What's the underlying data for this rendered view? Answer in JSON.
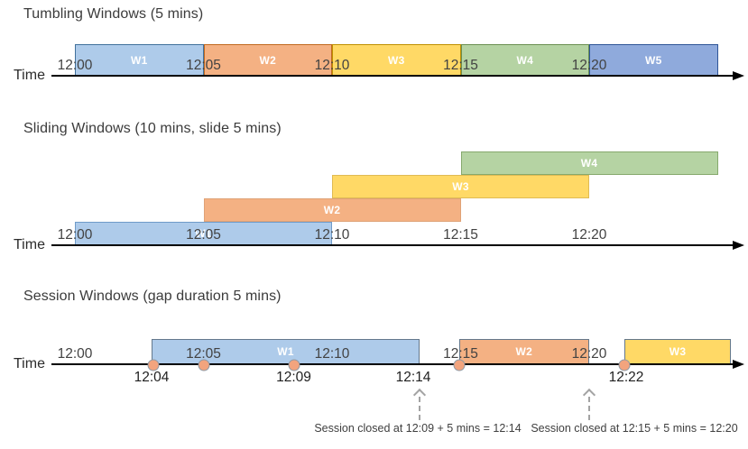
{
  "colors": {
    "blue": "#AECBEA",
    "orange": "#F4B183",
    "yellow": "#FFD966",
    "green": "#B5D3A3",
    "dark_blue": "#8FAADC",
    "event_dot": "#F2A47E",
    "axis": "#000000",
    "tick_text": "#424242"
  },
  "sections": [
    {
      "id": "tumbling",
      "title": "Tumbling Windows (5 mins)",
      "time_label": "Time",
      "ticks": [
        "12:00",
        "12:05",
        "12:10",
        "12:15",
        "12:20"
      ],
      "windows": [
        {
          "label": "W1",
          "color": "blue",
          "start": "12:00",
          "end": "12:05"
        },
        {
          "label": "W2",
          "color": "orange",
          "start": "12:05",
          "end": "12:10"
        },
        {
          "label": "W3",
          "color": "yellow",
          "start": "12:10",
          "end": "12:15"
        },
        {
          "label": "W4",
          "color": "green",
          "start": "12:15",
          "end": "12:20"
        },
        {
          "label": "W5",
          "color": "dark_blue",
          "start": "12:20",
          "end": "12:25"
        }
      ]
    },
    {
      "id": "sliding",
      "title": "Sliding Windows (10 mins, slide 5 mins)",
      "time_label": "Time",
      "ticks": [
        "12:00",
        "12:05",
        "12:10",
        "12:15",
        "12:20"
      ],
      "windows": [
        {
          "label": "W1",
          "color": "blue",
          "start": "12:00",
          "end": "12:10"
        },
        {
          "label": "W2",
          "color": "orange",
          "start": "12:05",
          "end": "12:15"
        },
        {
          "label": "W3",
          "color": "yellow",
          "start": "12:10",
          "end": "12:20"
        },
        {
          "label": "W4",
          "color": "green",
          "start": "12:15",
          "end": "12:25"
        }
      ]
    },
    {
      "id": "session",
      "title": "Session Windows (gap duration 5 mins)",
      "time_label": "Time",
      "ticks": [
        "12:00",
        "12:05",
        "12:10",
        "12:15",
        "12:20"
      ],
      "windows": [
        {
          "label": "W1",
          "color": "blue",
          "start": "12:04",
          "end": "12:14"
        },
        {
          "label": "W2",
          "color": "orange",
          "start": "12:15",
          "end": "12:20"
        },
        {
          "label": "W3",
          "color": "yellow",
          "start": "12:22",
          "end": ""
        }
      ],
      "events": [
        "12:04",
        "12:05",
        "12:09",
        "12:15",
        "12:22"
      ],
      "below_labels": [
        "12:04",
        "12:09",
        "12:14",
        "12:22"
      ],
      "annotations": [
        {
          "text": "Session closed at 12:09 + 5 mins = 12:14",
          "points_to": "12:14"
        },
        {
          "text": "Session closed at 12:15 + 5 mins = 12:20",
          "points_to": "12:20"
        }
      ]
    }
  ]
}
